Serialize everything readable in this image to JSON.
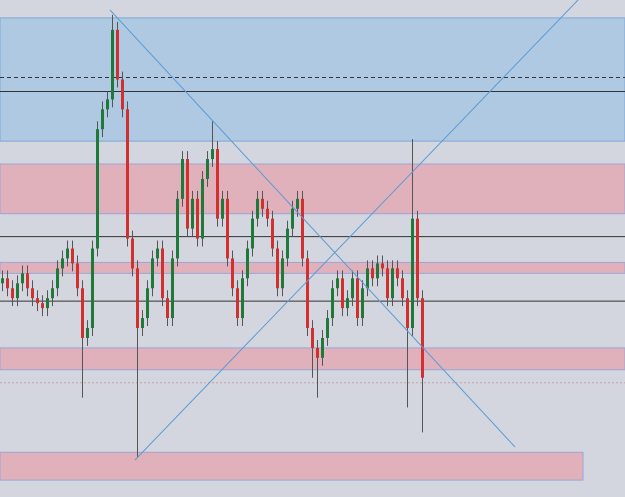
{
  "chart_data": {
    "type": "candlestick",
    "ylim": [
      0,
      500
    ],
    "up_color": "#1f7a3a",
    "down_color": "#d22f2f",
    "zones": [
      {
        "low": 358,
        "high": 482,
        "color": "#afc9e2"
      },
      {
        "low": 285,
        "high": 335,
        "color": "#e0b1ba"
      },
      {
        "low": 225,
        "high": 236,
        "color": "#e0b1ba"
      },
      {
        "low": 128,
        "high": 150,
        "color": "#e0b1ba"
      },
      {
        "low": 17,
        "high": 45,
        "color": "#e0b1ba"
      }
    ],
    "levels": [
      422,
      408,
      262,
      197,
      115
    ],
    "series": [
      {
        "open": [
          215,
          220,
          210,
          200,
          215,
          225,
          210,
          200,
          195,
          190,
          200,
          210,
          230,
          240,
          250,
          235,
          210,
          160,
          170,
          250,
          370,
          390,
          400,
          470,
          420,
          390,
          260,
          230,
          170,
          180,
          210,
          240,
          250,
          200,
          180,
          240,
          300,
          340,
          270,
          300,
          260,
          320,
          340,
          350,
          280,
          300,
          240,
          210,
          180,
          220,
          250,
          280,
          300,
          290,
          280,
          250,
          210,
          240,
          270,
          290,
          300,
          240,
          170,
          150,
          140,
          160,
          180,
          210,
          220,
          190,
          200,
          220,
          180,
          210,
          230,
          220,
          235,
          230,
          200,
          230,
          220,
          200,
          170,
          280,
          200
        ],
        "high": [
          228,
          228,
          218,
          223,
          233,
          233,
          218,
          208,
          203,
          208,
          218,
          238,
          248,
          258,
          258,
          243,
          218,
          178,
          258,
          378,
          398,
          408,
          485,
          478,
          428,
          398,
          268,
          238,
          188,
          218,
          248,
          258,
          258,
          208,
          248,
          308,
          348,
          348,
          308,
          308,
          328,
          348,
          378,
          358,
          308,
          308,
          248,
          218,
          228,
          258,
          288,
          308,
          308,
          298,
          288,
          258,
          248,
          278,
          298,
          308,
          308,
          248,
          178,
          158,
          168,
          188,
          218,
          228,
          228,
          208,
          228,
          228,
          218,
          238,
          238,
          243,
          243,
          238,
          238,
          238,
          228,
          208,
          360,
          288,
          208
        ],
        "low": [
          207,
          202,
          192,
          192,
          207,
          202,
          192,
          187,
          182,
          182,
          192,
          202,
          222,
          232,
          227,
          202,
          100,
          152,
          162,
          242,
          362,
          382,
          392,
          412,
          382,
          252,
          222,
          40,
          162,
          172,
          202,
          232,
          192,
          172,
          172,
          232,
          292,
          262,
          262,
          252,
          252,
          312,
          332,
          272,
          272,
          232,
          202,
          172,
          172,
          212,
          242,
          272,
          282,
          272,
          242,
          202,
          202,
          232,
          262,
          282,
          232,
          162,
          120,
          100,
          132,
          152,
          172,
          202,
          182,
          182,
          192,
          172,
          172,
          202,
          212,
          212,
          222,
          192,
          192,
          212,
          192,
          90,
          162,
          192,
          65
        ],
        "close": [
          220,
          210,
          200,
          215,
          225,
          210,
          200,
          195,
          190,
          200,
          210,
          230,
          240,
          250,
          235,
          210,
          160,
          170,
          250,
          370,
          390,
          400,
          470,
          420,
          390,
          260,
          230,
          170,
          180,
          210,
          240,
          250,
          200,
          180,
          240,
          300,
          340,
          270,
          300,
          260,
          320,
          340,
          350,
          280,
          300,
          240,
          210,
          180,
          220,
          250,
          280,
          300,
          290,
          280,
          250,
          210,
          240,
          270,
          290,
          300,
          240,
          170,
          150,
          140,
          160,
          180,
          210,
          220,
          190,
          200,
          220,
          180,
          210,
          230,
          220,
          235,
          230,
          200,
          230,
          220,
          200,
          170,
          280,
          200,
          120
        ]
      }
    ]
  }
}
